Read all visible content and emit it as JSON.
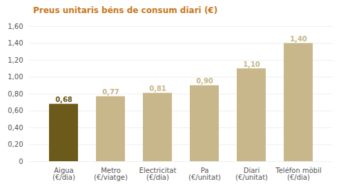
{
  "chart_data": {
    "type": "bar",
    "title": "Preus unitaris béns de consum diari (€)",
    "categories": [
      "Aigua\n(€/dia)",
      "Metro\n(€/viatge)",
      "Electricitat\n(€/dia)",
      "Pa\n(€/unitat)",
      "Diari\n(€/unitat)",
      "Teléfon mòbil\n(€/dia)"
    ],
    "values": [
      0.68,
      0.77,
      0.81,
      0.9,
      1.1,
      1.4
    ],
    "value_labels": [
      "0,68",
      "0,77",
      "0,81",
      "0,90",
      "1,10",
      "1,40"
    ],
    "colors": [
      "#6b5a1a",
      "#c8b78a",
      "#c8b78a",
      "#c8b78a",
      "#c8b78a",
      "#c8b78a"
    ],
    "ylim": [
      0,
      1.6
    ],
    "yticks": [
      0,
      {
        "value": 0.2,
        "label": "0,20"
      },
      {
        "value": 0.4,
        "label": "0,40"
      },
      {
        "value": 0.6,
        "label": "0,60"
      },
      {
        "value": 0.8,
        "label": "0,80"
      },
      {
        "value": 1.0,
        "label": "1,00"
      },
      {
        "value": 1.2,
        "label": "1,20"
      },
      {
        "value": 1.4,
        "label": "1,40"
      },
      {
        "value": 1.6,
        "label": "1,60"
      }
    ],
    "grid": true,
    "data_labels": true
  }
}
